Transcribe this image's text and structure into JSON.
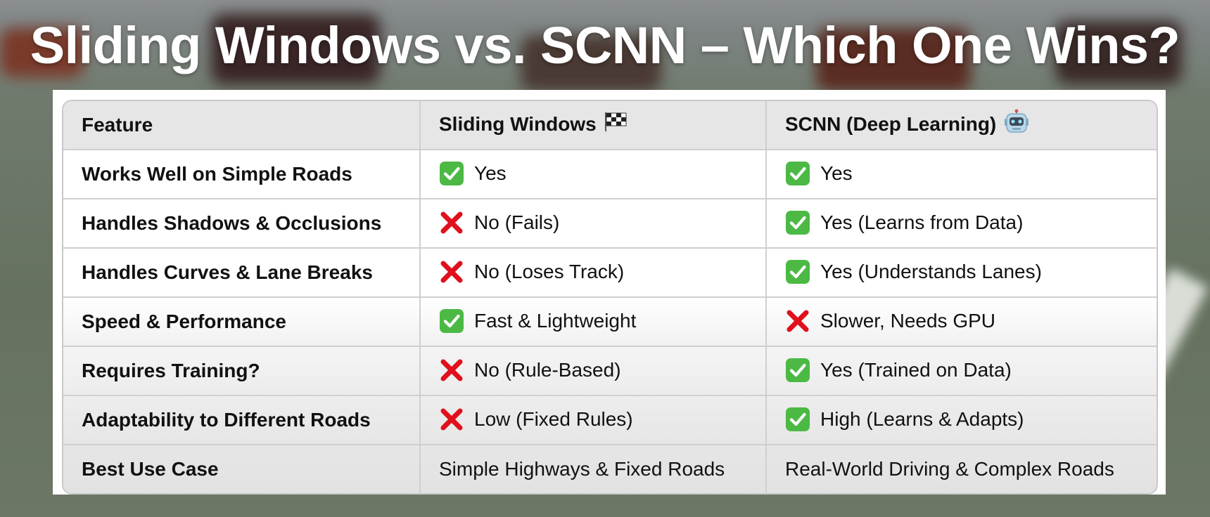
{
  "title": "Sliding Windows vs. SCNN – Which One Wins?",
  "colors": {
    "check_green": "#4cb944",
    "cross_red": "#e0101c",
    "header_bg": "#e6e6e6"
  },
  "table": {
    "headers": [
      {
        "label": "Feature",
        "icon": ""
      },
      {
        "label": "Sliding Windows",
        "icon": "checkered-flag-icon"
      },
      {
        "label": "SCNN (Deep Learning)",
        "icon": "robot-face-icon"
      }
    ],
    "rows": [
      {
        "feature": "Works Well on Simple Roads",
        "sw": {
          "mark": "check",
          "text": "Yes"
        },
        "scnn": {
          "mark": "check",
          "text": "Yes"
        }
      },
      {
        "feature": "Handles Shadows & Occlusions",
        "sw": {
          "mark": "cross",
          "text": "No (Fails)"
        },
        "scnn": {
          "mark": "check",
          "text": "Yes (Learns from Data)"
        }
      },
      {
        "feature": "Handles Curves & Lane Breaks",
        "sw": {
          "mark": "cross",
          "text": "No (Loses Track)"
        },
        "scnn": {
          "mark": "check",
          "text": "Yes (Understands Lanes)"
        }
      },
      {
        "feature": "Speed & Performance",
        "sw": {
          "mark": "check",
          "text": "Fast & Lightweight"
        },
        "scnn": {
          "mark": "cross",
          "text": "Slower, Needs GPU"
        }
      },
      {
        "feature": "Requires Training?",
        "sw": {
          "mark": "cross",
          "text": "No (Rule-Based)"
        },
        "scnn": {
          "mark": "check",
          "text": "Yes (Trained on Data)"
        }
      },
      {
        "feature": "Adaptability to Different Roads",
        "sw": {
          "mark": "cross",
          "text": "Low (Fixed Rules)"
        },
        "scnn": {
          "mark": "check",
          "text": "High (Learns & Adapts)"
        }
      },
      {
        "feature": "Best Use Case",
        "sw": {
          "mark": "",
          "text": "Simple Highways & Fixed Roads"
        },
        "scnn": {
          "mark": "",
          "text": "Real-World Driving & Complex Roads"
        }
      }
    ]
  }
}
